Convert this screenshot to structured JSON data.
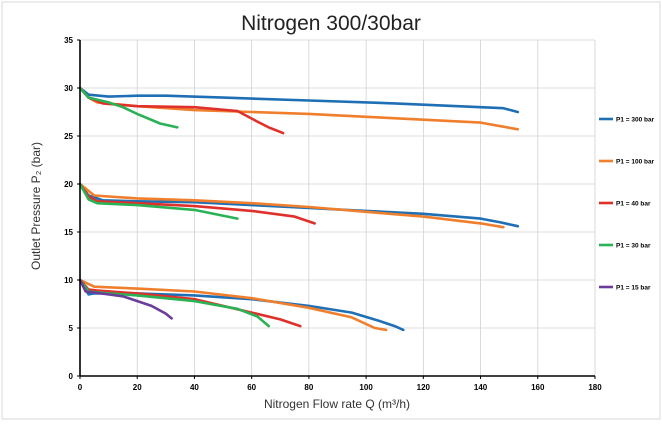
{
  "chart_data": {
    "type": "line",
    "title": "Nitrogen 300/30bar",
    "xlabel": "Nitrogen Flow rate Q (m³/h)",
    "ylabel": "Outlet Pressure P₂ (bar)",
    "xlim": [
      0,
      180
    ],
    "ylim": [
      0,
      35
    ],
    "xticks": [
      0,
      20,
      40,
      60,
      80,
      100,
      120,
      140,
      160,
      180
    ],
    "yticks": [
      0,
      5,
      10,
      15,
      20,
      25,
      30,
      35
    ],
    "grid": true,
    "legend_position": "right",
    "series": [
      {
        "name": "P1 = 300 bar",
        "color": "#1f6fb5",
        "curves": [
          [
            [
              0,
              30
            ],
            [
              3,
              29.3
            ],
            [
              10,
              29.1
            ],
            [
              20,
              29.2
            ],
            [
              30,
              29.2
            ],
            [
              50,
              29
            ],
            [
              80,
              28.7
            ],
            [
              110,
              28.4
            ],
            [
              140,
              28
            ],
            [
              148,
              27.9
            ],
            [
              153,
              27.5
            ]
          ],
          [
            [
              0,
              20
            ],
            [
              3,
              18.8
            ],
            [
              8,
              18.3
            ],
            [
              20,
              18.2
            ],
            [
              40,
              18.1
            ],
            [
              60,
              17.8
            ],
            [
              80,
              17.5
            ],
            [
              100,
              17.2
            ],
            [
              120,
              16.9
            ],
            [
              140,
              16.4
            ],
            [
              147,
              16
            ],
            [
              153,
              15.6
            ]
          ],
          [
            [
              0,
              10
            ],
            [
              3,
              8.5
            ],
            [
              5,
              8.6
            ],
            [
              20,
              8.6
            ],
            [
              40,
              8.4
            ],
            [
              60,
              8
            ],
            [
              80,
              7.3
            ],
            [
              95,
              6.6
            ],
            [
              105,
              5.7
            ],
            [
              110,
              5.2
            ],
            [
              113,
              4.8
            ]
          ]
        ]
      },
      {
        "name": "P1 = 100 bar",
        "color": "#f07f2d",
        "curves": [
          [
            [
              0,
              30
            ],
            [
              3,
              29
            ],
            [
              6,
              28.5
            ],
            [
              20,
              28.1
            ],
            [
              40,
              27.7
            ],
            [
              60,
              27.5
            ],
            [
              80,
              27.3
            ],
            [
              100,
              27
            ],
            [
              120,
              26.7
            ],
            [
              140,
              26.4
            ],
            [
              153,
              25.7
            ]
          ],
          [
            [
              0,
              20
            ],
            [
              5,
              18.8
            ],
            [
              20,
              18.5
            ],
            [
              40,
              18.3
            ],
            [
              60,
              18
            ],
            [
              80,
              17.6
            ],
            [
              100,
              17.1
            ],
            [
              120,
              16.6
            ],
            [
              140,
              15.9
            ],
            [
              148,
              15.5
            ]
          ],
          [
            [
              0,
              10
            ],
            [
              5,
              9.3
            ],
            [
              20,
              9.1
            ],
            [
              40,
              8.8
            ],
            [
              60,
              8.1
            ],
            [
              80,
              7.1
            ],
            [
              95,
              6.1
            ],
            [
              103,
              5
            ],
            [
              107,
              4.8
            ]
          ]
        ]
      },
      {
        "name": "P1 = 40 bar",
        "color": "#e0302a",
        "curves": [
          [
            [
              0,
              30
            ],
            [
              3,
              29
            ],
            [
              8,
              28.4
            ],
            [
              20,
              28.1
            ],
            [
              40,
              28
            ],
            [
              55,
              27.6
            ],
            [
              62,
              26.5
            ],
            [
              66,
              25.9
            ],
            [
              71,
              25.3
            ]
          ],
          [
            [
              0,
              20
            ],
            [
              3,
              18.7
            ],
            [
              6,
              18.2
            ],
            [
              20,
              18
            ],
            [
              40,
              17.7
            ],
            [
              60,
              17.2
            ],
            [
              75,
              16.6
            ],
            [
              82,
              15.9
            ]
          ],
          [
            [
              0,
              10
            ],
            [
              3,
              9
            ],
            [
              6,
              8.9
            ],
            [
              20,
              8.6
            ],
            [
              40,
              8
            ],
            [
              60,
              6.6
            ],
            [
              70,
              5.9
            ],
            [
              77,
              5.2
            ]
          ]
        ]
      },
      {
        "name": "P1 = 30 bar",
        "color": "#2bb256",
        "curves": [
          [
            [
              0,
              30
            ],
            [
              3,
              29
            ],
            [
              10,
              28.5
            ],
            [
              15,
              28
            ],
            [
              20,
              27.3
            ],
            [
              28,
              26.3
            ],
            [
              34,
              25.9
            ]
          ],
          [
            [
              0,
              20
            ],
            [
              3,
              18.4
            ],
            [
              6,
              18
            ],
            [
              20,
              17.8
            ],
            [
              40,
              17.3
            ],
            [
              55,
              16.4
            ]
          ],
          [
            [
              0,
              10
            ],
            [
              3,
              8.8
            ],
            [
              10,
              8.6
            ],
            [
              20,
              8.4
            ],
            [
              40,
              7.8
            ],
            [
              55,
              7
            ],
            [
              62,
              6.2
            ],
            [
              66,
              5.2
            ]
          ]
        ]
      },
      {
        "name": "P1 = 15 bar",
        "color": "#6a3d9a",
        "curves": [
          [
            [
              0,
              10
            ],
            [
              2,
              8.8
            ],
            [
              5,
              8.7
            ],
            [
              15,
              8.3
            ],
            [
              25,
              7.3
            ],
            [
              30,
              6.5
            ],
            [
              32,
              6
            ]
          ]
        ]
      }
    ]
  }
}
